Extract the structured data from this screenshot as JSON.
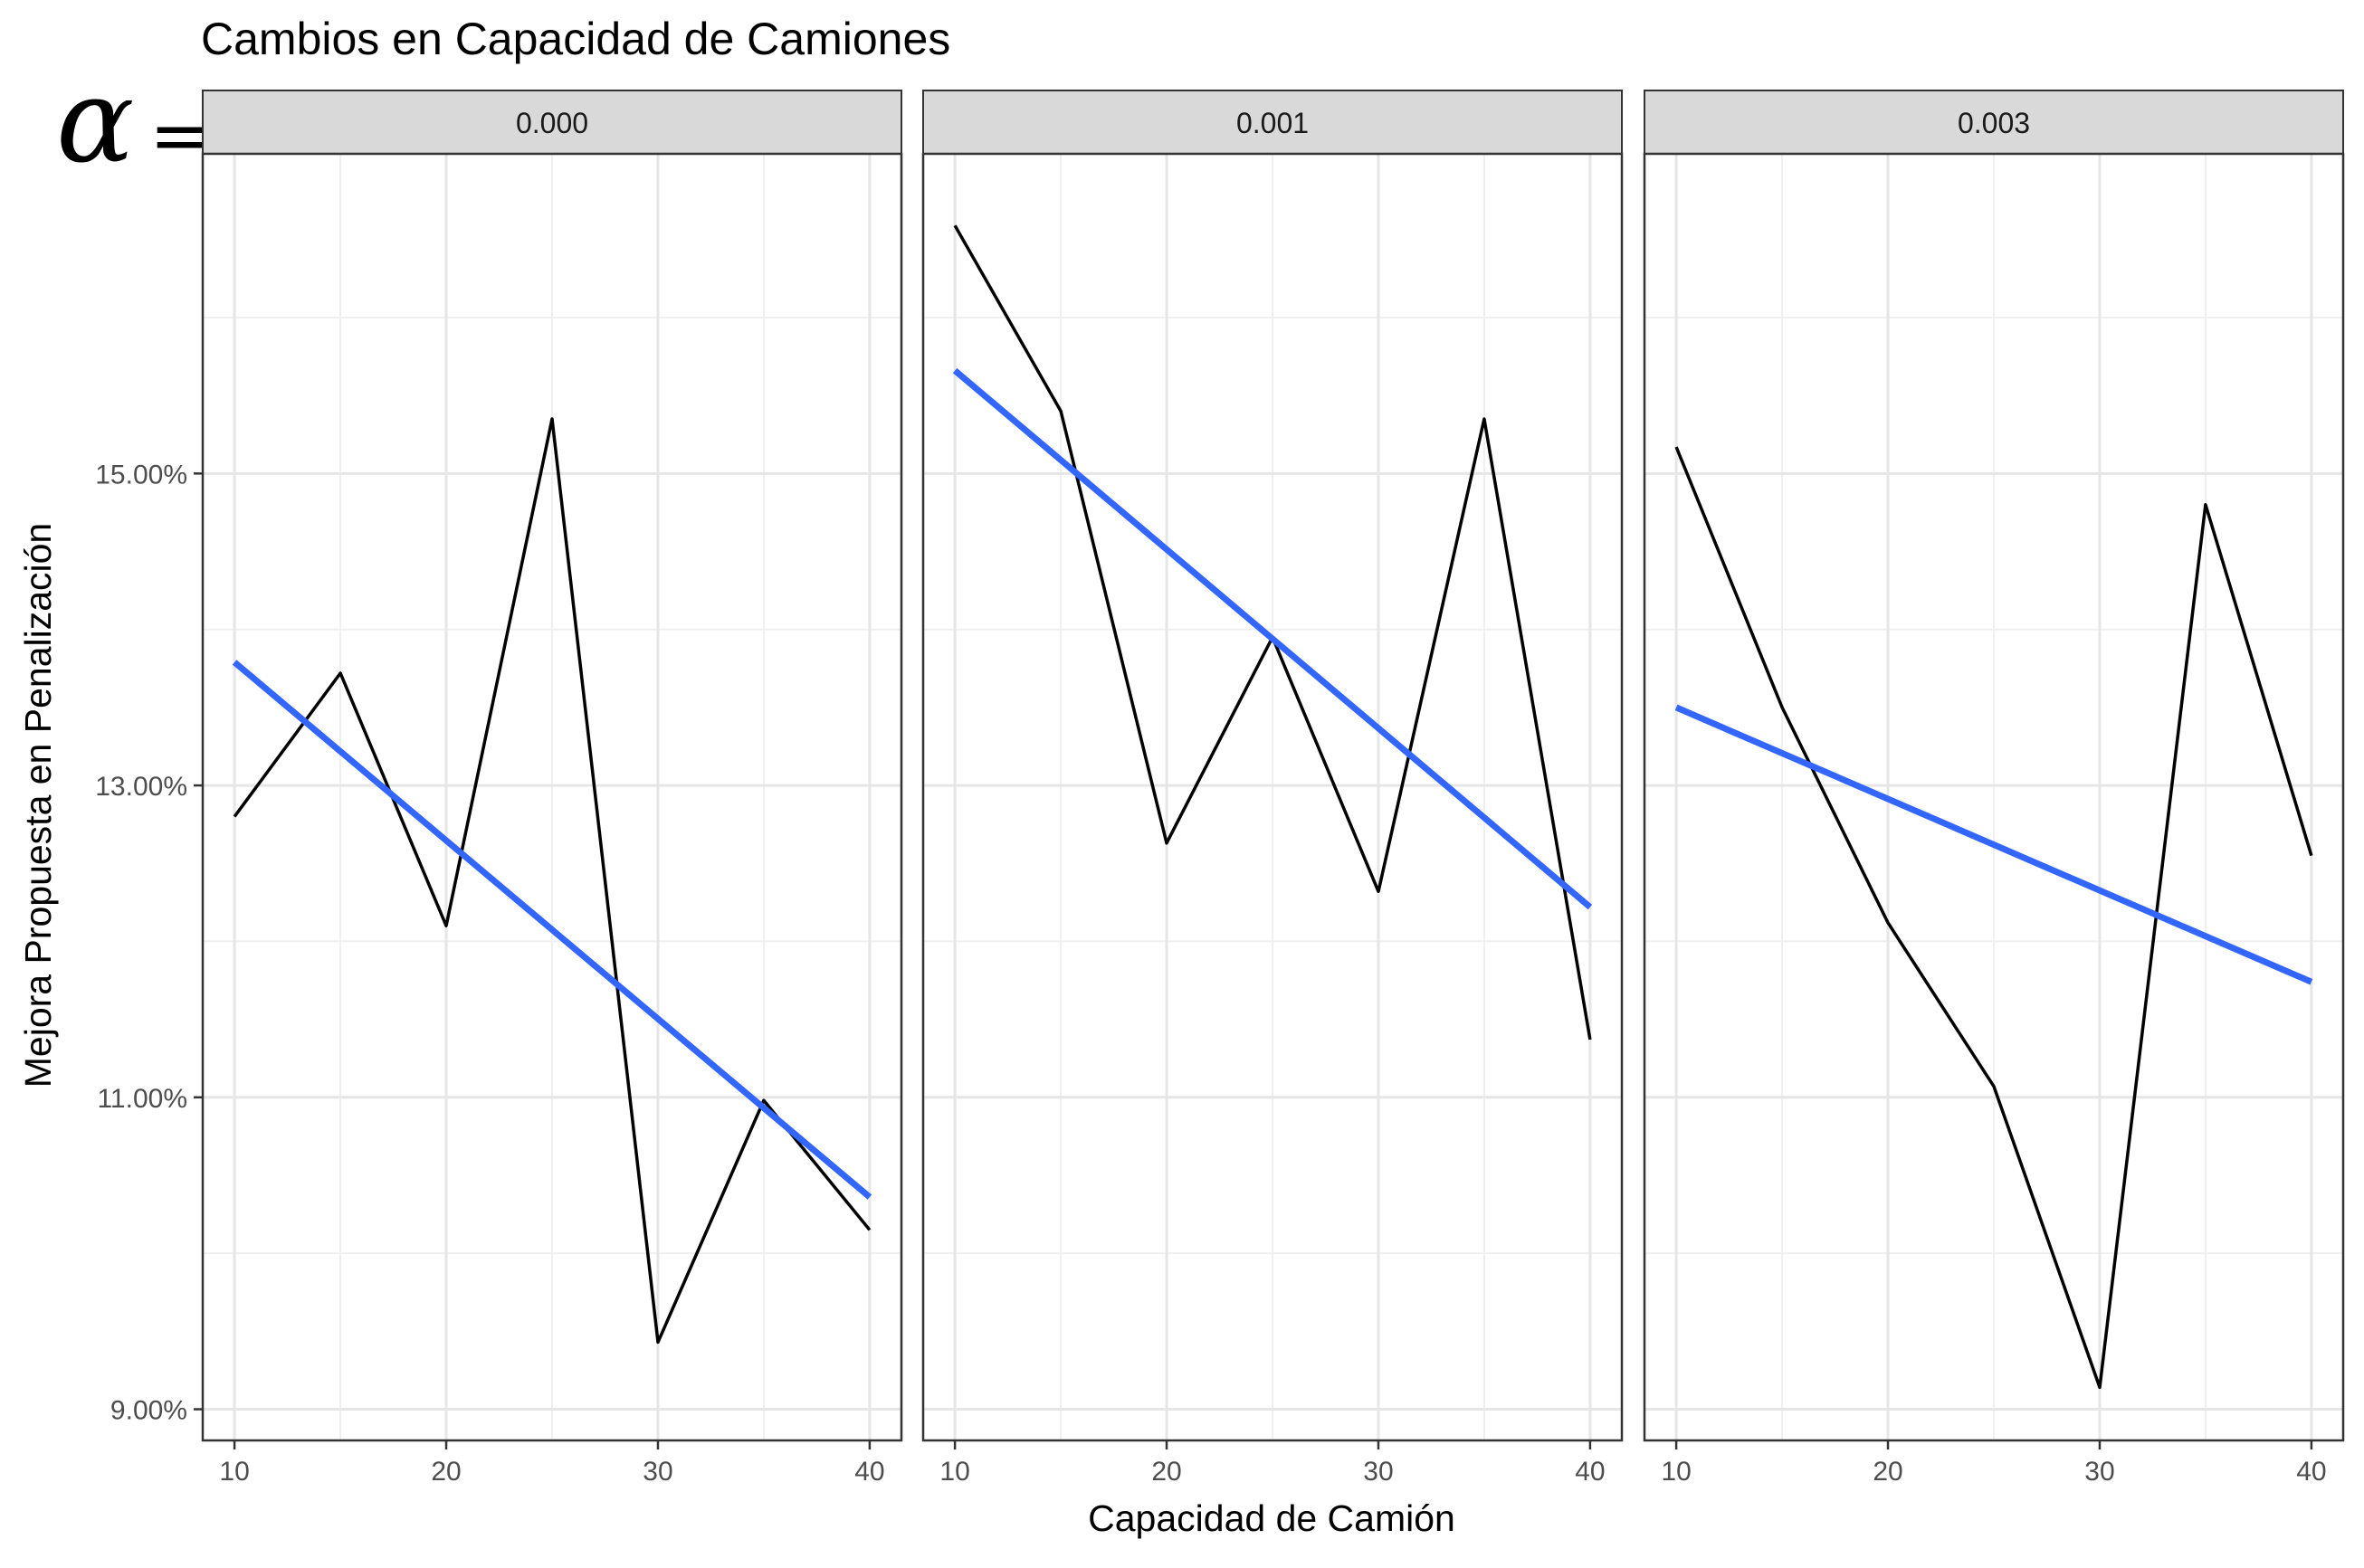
{
  "chart_data": {
    "type": "line",
    "title": "Cambios en Capacidad de Camiones",
    "facet_label_symbol": "α",
    "facet_label_suffix": "=",
    "xlabel": "Capacidad de Camión",
    "ylabel": "Mejora Propuesta en Penalización",
    "xlim": [
      8.5,
      41.5
    ],
    "ylim": [
      8.8,
      17.05
    ],
    "x_ticks": [
      10,
      20,
      30,
      40
    ],
    "x_tick_labels": [
      "10",
      "20",
      "30",
      "40"
    ],
    "y_ticks": [
      9,
      11,
      13,
      15
    ],
    "y_tick_labels": [
      "9.00%",
      "11.00%",
      "13.00%",
      "15.00%"
    ],
    "grid": true,
    "line_color": "#000000",
    "trend_color": "#3366ff",
    "strip_fill": "#d9d9d9",
    "panels": [
      {
        "label": "0.000",
        "series": [
          {
            "x": [
              10,
              15,
              20,
              25,
              30,
              35,
              40
            ],
            "y": [
              12.8,
              13.72,
              12.1,
              15.35,
              9.43,
              10.98,
              10.15
            ]
          }
        ],
        "trend": {
          "x": [
            10,
            40
          ],
          "y": [
            13.79,
            10.36
          ]
        }
      },
      {
        "label": "0.001",
        "series": [
          {
            "x": [
              10,
              15,
              20,
              25,
              30,
              35,
              40
            ],
            "y": [
              16.59,
              15.4,
              12.63,
              13.95,
              12.32,
              15.35,
              11.37
            ]
          }
        ],
        "trend": {
          "x": [
            10,
            40
          ],
          "y": [
            15.66,
            12.22
          ]
        }
      },
      {
        "label": "0.003",
        "series": [
          {
            "x": [
              10,
              15,
              20,
              25,
              30,
              35,
              40
            ],
            "y": [
              15.17,
              13.5,
              12.12,
              11.07,
              9.14,
              14.8,
              12.55
            ]
          }
        ],
        "trend": {
          "x": [
            10,
            40
          ],
          "y": [
            13.5,
            11.74
          ]
        }
      }
    ]
  }
}
